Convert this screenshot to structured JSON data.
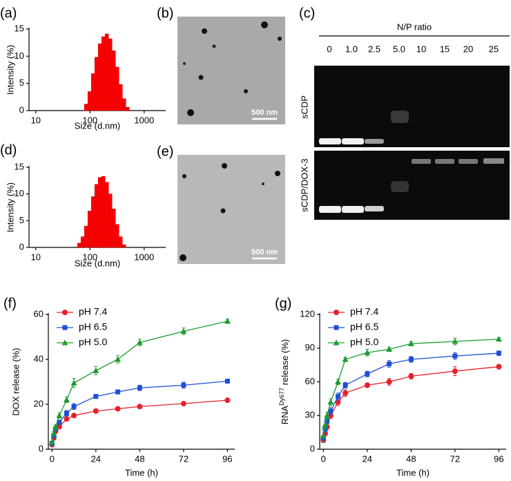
{
  "chart_data": [
    {
      "label": "(a)",
      "type": "histogram",
      "xlabel": "Size (d.nm)",
      "ylabel": "Intensity (%)",
      "log_x": true,
      "xlim": [
        7.5,
        2500
      ],
      "xticks": [
        10,
        100,
        1000
      ],
      "ylim": [
        0,
        15
      ],
      "yticks": [
        0,
        5,
        10,
        15
      ],
      "color": "#ff0000",
      "bins": [
        78.82,
        91.28,
        105.7,
        122.4,
        141.8,
        164.2,
        190.1,
        220.2,
        255.0,
        295.3,
        342.0,
        396.1,
        458.7,
        531.2
      ],
      "values": [
        1.2,
        3.5,
        6.8,
        9.8,
        12.3,
        13.6,
        14.1,
        13.2,
        11.0,
        8.0,
        4.8,
        2.2,
        0.6
      ]
    },
    {
      "label": "(d)",
      "type": "histogram",
      "xlabel": "Size (d.nm)",
      "ylabel": "Intensity (%)",
      "log_x": true,
      "xlim": [
        7.5,
        2500
      ],
      "xticks": [
        10,
        100,
        1000
      ],
      "ylim": [
        0,
        15
      ],
      "yticks": [
        0,
        5,
        10,
        15
      ],
      "color": "#ff0000",
      "bins": [
        58.77,
        68.06,
        78.82,
        91.28,
        105.7,
        122.4,
        141.8,
        164.2,
        190.1,
        220.2,
        255.0,
        295.3,
        342.0,
        396.1,
        458.7
      ],
      "values": [
        0.8,
        2.0,
        4.0,
        6.8,
        9.5,
        11.8,
        13.1,
        13.3,
        12.2,
        10.0,
        7.2,
        4.3,
        2.0,
        0.5
      ]
    },
    {
      "label": "(f)",
      "type": "line",
      "xlabel": "Time (h)",
      "ylabel": "DOX release (%)",
      "xlim": [
        -2,
        100
      ],
      "xticks": [
        0,
        24,
        48,
        72,
        96
      ],
      "ylim": [
        0,
        60
      ],
      "yticks": [
        0,
        20,
        40,
        60
      ],
      "legend": "upper left",
      "x": [
        0,
        1,
        2,
        4,
        8,
        12,
        24,
        36,
        48,
        72,
        96
      ],
      "series": [
        {
          "name": "pH 7.4",
          "color": "#e8202a",
          "marker": "circle",
          "values": [
            2,
            5,
            8,
            10,
            13.5,
            15,
            17,
            18,
            19,
            20.3,
            21.8
          ],
          "errors": [
            0.5,
            0.6,
            0.7,
            0.8,
            0.8,
            0.9,
            0.8,
            0.8,
            0.8,
            0.8,
            0.8
          ]
        },
        {
          "name": "pH 6.5",
          "color": "#1f4fd8",
          "marker": "square",
          "values": [
            2.5,
            6,
            9,
            12,
            16,
            19,
            23.5,
            25.5,
            27.3,
            28.5,
            30.3
          ],
          "errors": [
            0.6,
            0.7,
            0.8,
            1,
            1.2,
            1.3,
            0.9,
            0.9,
            1.2,
            1.4,
            0.9
          ]
        },
        {
          "name": "pH 5.0",
          "color": "#1c9b2e",
          "marker": "triangle",
          "values": [
            3,
            7,
            10,
            15,
            22,
            29.5,
            35,
            40,
            47.5,
            52.5,
            57
          ],
          "errors": [
            0.7,
            0.8,
            1,
            1.2,
            1.3,
            2,
            1.8,
            1.6,
            1.5,
            1.5,
            1
          ]
        }
      ]
    },
    {
      "label": "(g)",
      "type": "line",
      "xlabel": "Time (h)",
      "ylabel": {
        "base": "RNA",
        "sup": "Dy677",
        "rest": " release (%)"
      },
      "xlim": [
        -2,
        100
      ],
      "xticks": [
        0,
        24,
        48,
        72,
        96
      ],
      "ylim": [
        0,
        120
      ],
      "yticks": [
        0,
        30,
        60,
        90,
        120
      ],
      "legend": "upper left",
      "x": [
        0,
        1,
        2,
        4,
        8,
        12,
        24,
        36,
        48,
        72,
        96
      ],
      "series": [
        {
          "name": "pH 7.4",
          "color": "#e8202a",
          "marker": "circle",
          "values": [
            8,
            14,
            20,
            30,
            42,
            50,
            57,
            60,
            65,
            69.5,
            73.5
          ],
          "errors": [
            2,
            2,
            2.5,
            2.5,
            3,
            3,
            2,
            3,
            2.5,
            4,
            2
          ]
        },
        {
          "name": "pH 6.5",
          "color": "#1f4fd8",
          "marker": "square",
          "values": [
            10,
            18,
            25,
            34,
            47,
            57,
            67,
            76,
            80,
            83,
            85.5
          ],
          "errors": [
            2,
            2.5,
            2.5,
            3,
            3,
            2.5,
            2.5,
            3,
            2.5,
            3,
            2
          ]
        },
        {
          "name": "pH 5.0",
          "color": "#1c9b2e",
          "marker": "triangle",
          "values": [
            12,
            22,
            30,
            42,
            60,
            80,
            86,
            89,
            94,
            96,
            98
          ],
          "errors": [
            6,
            3,
            3,
            3,
            2.5,
            2,
            3,
            2,
            2,
            3,
            1.5
          ]
        }
      ]
    }
  ],
  "images": [
    {
      "label": "(b)",
      "scale_bar": "500 nm"
    },
    {
      "label": "(e)",
      "scale_bar": "500 nm"
    }
  ],
  "gel": {
    "label": "(c)",
    "title": "N/P ratio",
    "lanes": [
      "0",
      "1.0",
      "2.5",
      "5.0",
      "10",
      "15",
      "20",
      "25"
    ],
    "rows": [
      "sCDP",
      "sCDP/DOX-3"
    ]
  }
}
